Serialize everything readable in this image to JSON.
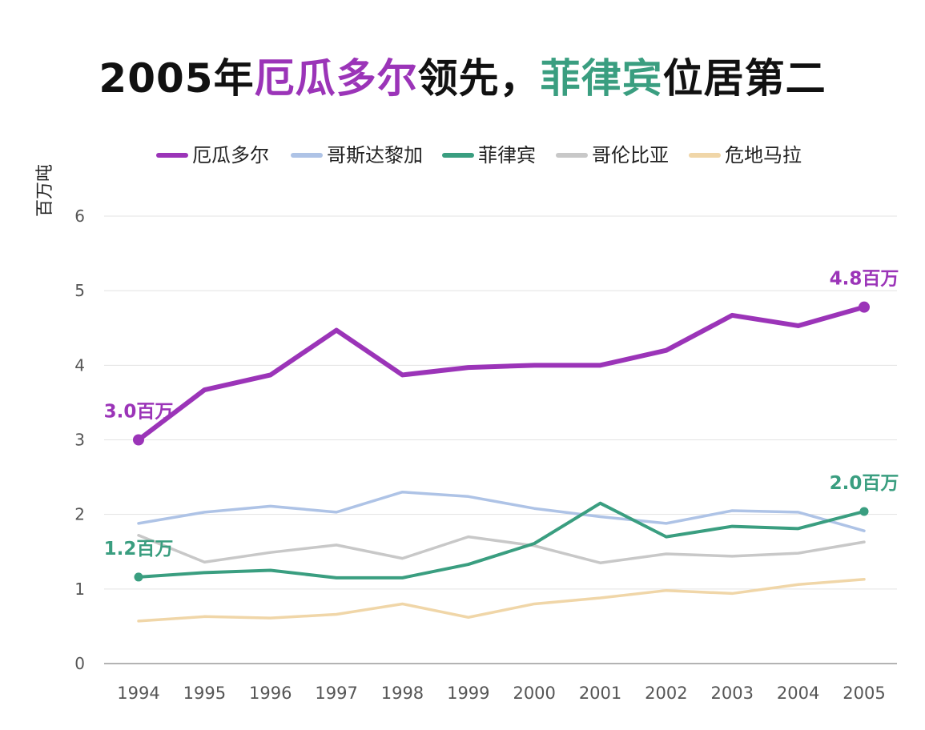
{
  "title": {
    "part1": "2005年",
    "part2": "厄瓜多尔",
    "part3": "领先，",
    "part4": "菲律宾",
    "part5": "位居第二",
    "part2_color": "#9b34b8",
    "part4_color": "#3a9e80"
  },
  "chart_data": {
    "type": "line",
    "title": "2005年厄瓜多尔领先，菲律宾位居第二",
    "ylabel": "百万吨",
    "xlabel": "",
    "x": [
      "1994",
      "1995",
      "1996",
      "1997",
      "1998",
      "1999",
      "2000",
      "2001",
      "2002",
      "2003",
      "2004",
      "2005"
    ],
    "ylim": [
      0,
      6
    ],
    "yticks": [
      "0",
      "1",
      "2",
      "3",
      "4",
      "5",
      "6"
    ],
    "grid": true,
    "legend_position": "top",
    "series": [
      {
        "name": "厄瓜多尔",
        "color": "#9b34b8",
        "emphasis": true,
        "values": [
          3.0,
          3.67,
          3.87,
          4.47,
          3.87,
          3.97,
          4.0,
          4.0,
          4.2,
          4.67,
          4.53,
          4.78
        ]
      },
      {
        "name": "哥斯达黎加",
        "color": "#aec3e6",
        "values": [
          1.88,
          2.03,
          2.11,
          2.03,
          2.3,
          2.24,
          2.08,
          1.97,
          1.88,
          2.05,
          2.03,
          1.78
        ]
      },
      {
        "name": "菲律宾",
        "color": "#3a9e80",
        "emphasis": true,
        "values": [
          1.16,
          1.22,
          1.25,
          1.15,
          1.15,
          1.33,
          1.61,
          2.15,
          1.7,
          1.84,
          1.81,
          2.04
        ]
      },
      {
        "name": "哥伦比亚",
        "color": "#c8c8c8",
        "values": [
          1.72,
          1.36,
          1.49,
          1.59,
          1.41,
          1.7,
          1.58,
          1.35,
          1.47,
          1.44,
          1.48,
          1.63
        ]
      },
      {
        "name": "危地马拉",
        "color": "#f0d6a8",
        "values": [
          0.57,
          0.63,
          0.61,
          0.66,
          0.8,
          0.62,
          0.8,
          0.88,
          0.98,
          0.94,
          1.06,
          1.13
        ]
      }
    ],
    "annotations": [
      {
        "series": 0,
        "index": 0,
        "text": "3.0百万",
        "color": "#9b34b8"
      },
      {
        "series": 0,
        "index": 11,
        "text": "4.8百万",
        "color": "#9b34b8"
      },
      {
        "series": 2,
        "index": 0,
        "text": "1.2百万",
        "color": "#3a9e80"
      },
      {
        "series": 2,
        "index": 11,
        "text": "2.0百万",
        "color": "#3a9e80"
      }
    ]
  }
}
